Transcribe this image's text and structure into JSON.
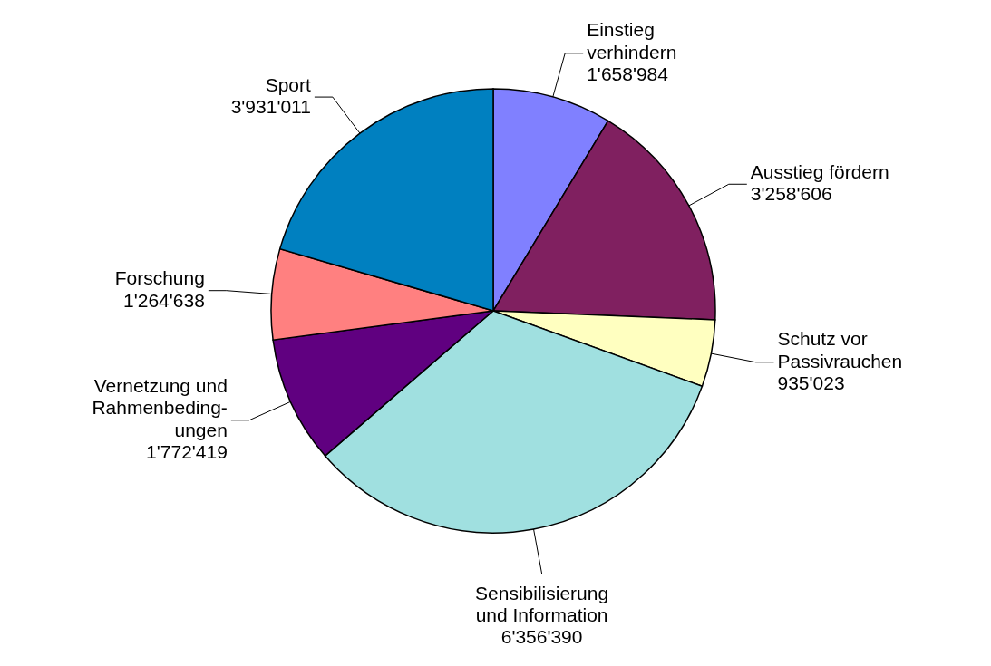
{
  "chart_data": {
    "type": "pie",
    "categories": [
      "Einstieg\nverhindern",
      "Ausstieg fördern",
      "Schutz vor\nPassivrauchen",
      "Sensibilisierung\nund Information",
      "Vernetzung und\nRahmenbeding-\nungen",
      "Forschung",
      "Sport"
    ],
    "values": [
      1658984,
      3258606,
      935023,
      6356390,
      1772419,
      1264638,
      3931011
    ],
    "value_labels": [
      "1'658'984",
      "3'258'606",
      "935'023",
      "6'356'390",
      "1'772'419",
      "1'264'638",
      "3'931'011"
    ],
    "colors": [
      "#8080ff",
      "#802060",
      "#ffffc0",
      "#a0e0e0",
      "#600080",
      "#ff8080",
      "#0080c0"
    ]
  }
}
